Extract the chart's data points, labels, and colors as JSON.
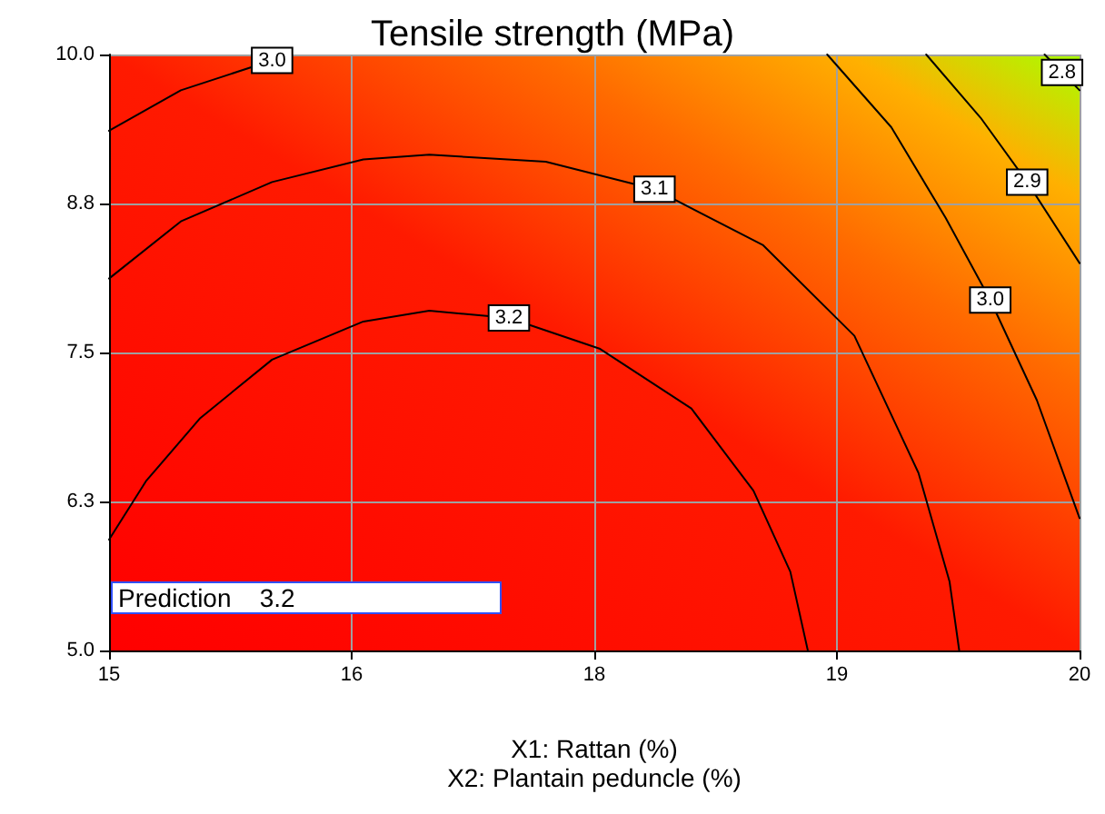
{
  "chart_data": {
    "type": "line",
    "title": "Tensile strength (MPa)",
    "xlabel": "X1: Rattan (%)\nX2: Plantain peduncle (%)",
    "annotations": [
      "Prediction    3.2"
    ],
    "series": [
      {
        "name": "3.2",
        "color": "#000000",
        "x": [
          15,
          15.19,
          15.47,
          15.84,
          16.31,
          16.65,
          17.06,
          17.53,
          18.0,
          18.32,
          18.51,
          18.6
        ],
        "values": [
          5.93,
          6.42,
          6.95,
          7.44,
          7.76,
          7.85,
          7.79,
          7.53,
          7.03,
          6.34,
          5.66,
          5.0
        ]
      },
      {
        "name": "3.1",
        "color": "#000000",
        "x": [
          15,
          15.37,
          15.84,
          16.31,
          16.65,
          17.25,
          17.81,
          18.37,
          18.84,
          19.17,
          19.33,
          19.38
        ],
        "values": [
          8.12,
          8.6,
          8.93,
          9.12,
          9.16,
          9.1,
          8.87,
          8.4,
          7.64,
          6.49,
          5.58,
          5.0
        ]
      },
      {
        "name": "3.0",
        "color": "#000000",
        "x": [
          15,
          15.37,
          15.84,
          15.94
        ],
        "values": [
          9.36,
          9.7,
          9.95,
          10.0
        ]
      },
      {
        "name": "3.0",
        "color": "#000000",
        "x": [
          18.7,
          19.03,
          19.31,
          19.54,
          19.78,
          20
        ],
        "values": [
          10.0,
          9.39,
          8.63,
          7.94,
          7.1,
          6.11
        ]
      },
      {
        "name": "2.9",
        "color": "#000000",
        "x": [
          19.21,
          19.49,
          19.73,
          20
        ],
        "values": [
          10.0,
          9.47,
          8.93,
          8.25
        ]
      },
      {
        "name": "2.8",
        "color": "#000000",
        "x": [
          19.82,
          19.91,
          20
        ],
        "values": [
          10.0,
          9.85,
          9.7
        ]
      }
    ],
    "xlim": [
      15,
      20
    ],
    "xticks": [
      15,
      {
        "value": 16.25,
        "label": "16"
      },
      {
        "value": 17.5,
        "label": "18"
      },
      {
        "value": 18.75,
        "label": "19"
      },
      20
    ],
    "ylim": [
      5,
      10
    ],
    "yticks": [
      {
        "value": 5,
        "label": "5.0"
      },
      {
        "value": 6.25,
        "label": "6.3"
      },
      {
        "value": 7.5,
        "label": "7.5"
      },
      {
        "value": 8.75,
        "label": "8.8"
      },
      {
        "value": 10,
        "label": "10.0"
      }
    ],
    "grid": true,
    "legend": false,
    "marker": "none",
    "line_style": "solid"
  }
}
